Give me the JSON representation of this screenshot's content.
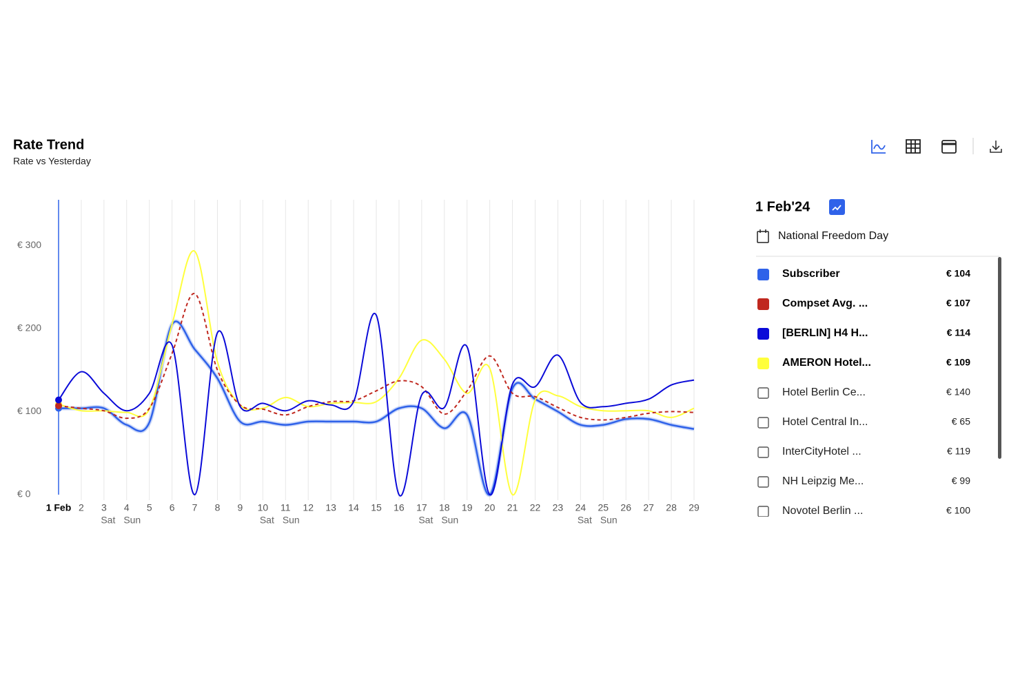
{
  "header": {
    "title": "Rate Trend",
    "subtitle": "Rate vs Yesterday"
  },
  "chart_data": {
    "type": "line",
    "categories": [
      "1 Feb",
      "2",
      "3",
      "4",
      "5",
      "6",
      "7",
      "8",
      "9",
      "10",
      "11",
      "12",
      "13",
      "14",
      "15",
      "16",
      "17",
      "18",
      "19",
      "20",
      "21",
      "22",
      "23",
      "24",
      "25",
      "26",
      "27",
      "28",
      "29"
    ],
    "weekday_labels": [
      null,
      null,
      "Sat",
      "Sun",
      null,
      null,
      null,
      null,
      null,
      "Sat",
      "Sun",
      null,
      null,
      null,
      null,
      null,
      "Sat",
      "Sun",
      null,
      null,
      null,
      null,
      null,
      "Sat",
      "Sun",
      null,
      null,
      null,
      null
    ],
    "ylim": [
      0,
      355
    ],
    "yticks": [
      {
        "value": 0,
        "label": "€ 0"
      },
      {
        "value": 100,
        "label": "€ 100"
      },
      {
        "value": 200,
        "label": "€ 200"
      },
      {
        "value": 300,
        "label": "€ 300"
      }
    ],
    "grid": true,
    "series": [
      {
        "name": "Subscriber",
        "color": "#2f62e9",
        "dashed": false,
        "glow": true,
        "current_label": "€ 104",
        "values": [
          104,
          104,
          104,
          84,
          87,
          205,
          175,
          140,
          88,
          88,
          84,
          88,
          88,
          88,
          88,
          104,
          104,
          80,
          96,
          0,
          128,
          115,
          100,
          84,
          84,
          91,
          91,
          84,
          79
        ]
      },
      {
        "name": "Compset Avg. ...",
        "color": "#c0281f",
        "dashed": true,
        "glow": false,
        "current_label": "€ 107",
        "values": [
          107,
          104,
          101,
          92,
          104,
          170,
          242,
          150,
          108,
          103,
          96,
          106,
          112,
          113,
          125,
          137,
          130,
          97,
          125,
          167,
          122,
          118,
          105,
          93,
          90,
          93,
          98,
          100,
          99
        ]
      },
      {
        "name": "[BERLIN] H4 H...",
        "color": "#0a0ad8",
        "dashed": false,
        "glow": false,
        "current_label": "€ 114",
        "values": [
          114,
          148,
          122,
          101,
          122,
          180,
          0,
          195,
          106,
          110,
          101,
          113,
          108,
          112,
          216,
          0,
          120,
          105,
          178,
          0,
          133,
          130,
          168,
          111,
          106,
          110,
          115,
          132,
          138
        ]
      },
      {
        "name": "AMERON Hotel...",
        "color": "#ffff3c",
        "dashed": false,
        "glow": false,
        "current_label": "€ 109",
        "values": [
          109,
          101,
          101,
          99,
          103,
          205,
          293,
          160,
          108,
          104,
          117,
          106,
          110,
          111,
          112,
          140,
          186,
          163,
          122,
          152,
          0,
          114,
          119,
          106,
          101,
          101,
          101,
          93,
          104
        ]
      }
    ]
  },
  "panel": {
    "date": "1 Feb'24",
    "event": "National Freedom Day",
    "others": [
      {
        "name": "Hotel Berlin Ce...",
        "value": "€ 140"
      },
      {
        "name": "Hotel Central In...",
        "value": "€ 65"
      },
      {
        "name": "InterCityHotel ...",
        "value": "€ 119"
      },
      {
        "name": "NH Leipzig Me...",
        "value": "€ 99"
      },
      {
        "name": "Novotel Berlin ...",
        "value": "€ 100"
      }
    ]
  }
}
